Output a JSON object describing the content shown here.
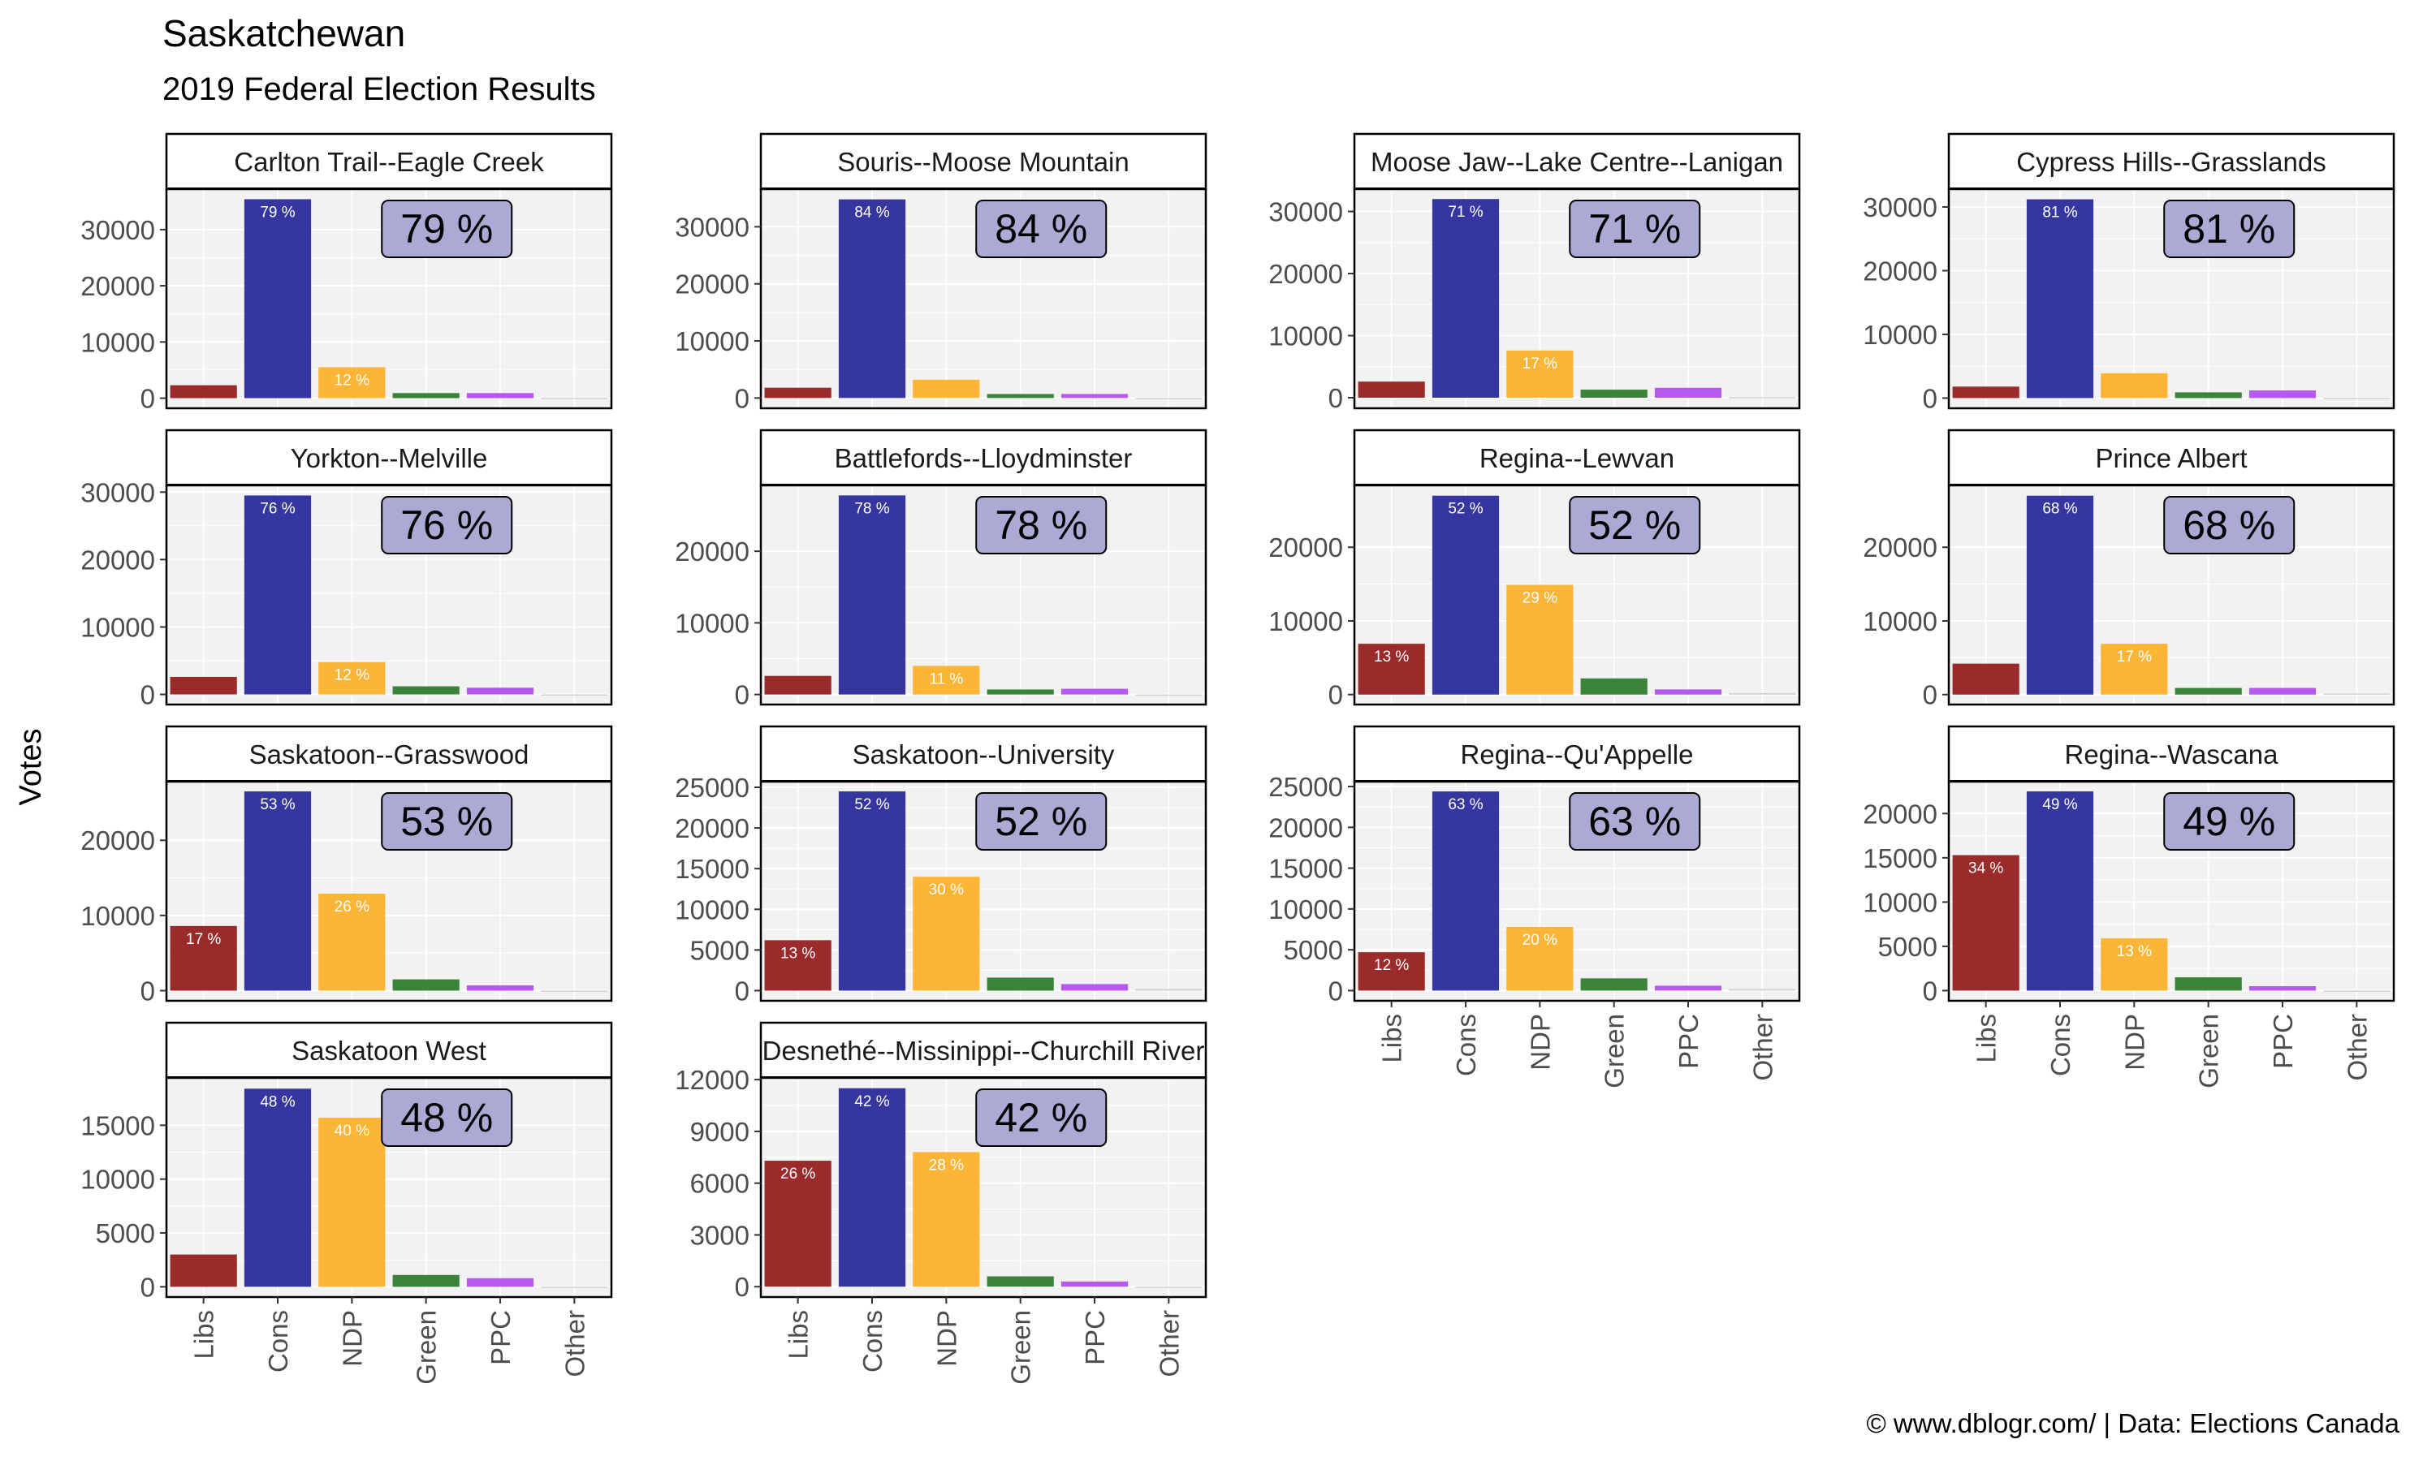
{
  "title": "Saskatchewan",
  "subtitle": "2019 Federal Election Results",
  "caption": "© www.dblogr.com/  |  Data: Elections Canada",
  "colors": {
    "Libs": "#962020",
    "Cons": "#2b2b9b",
    "NDP": "#fcb12c",
    "Green": "#2e7d2e",
    "PPC": "#b34ff0",
    "Other": "#cfcfcf",
    "panel_bg": "#f2f2f2",
    "grid": "#ffffff",
    "badge_bg": "#aaaad5"
  },
  "chart_data": {
    "type": "bar",
    "title": "Saskatchewan",
    "subtitle": "2019 Federal Election Results",
    "ylabel": "Votes",
    "categories": [
      "Libs",
      "Cons",
      "NDP",
      "Green",
      "PPC",
      "Other"
    ],
    "grid": true,
    "panels": [
      {
        "name": "Carlton Trail--Eagle Creek",
        "values": [
          2300,
          35400,
          5500,
          900,
          900,
          50
        ],
        "labels": [
          "",
          "79 %",
          "12 %",
          "",
          "",
          ""
        ],
        "winner": "79 %",
        "ylim": [
          -1800,
          37200
        ],
        "yticks": [
          0,
          10000,
          20000,
          30000
        ]
      },
      {
        "name": "Souris--Moose Mountain",
        "values": [
          1800,
          34800,
          3200,
          700,
          700,
          0
        ],
        "labels": [
          "",
          "84 %",
          "",
          "",
          "",
          ""
        ],
        "winner": "84 %",
        "ylim": [
          -1800,
          36600
        ],
        "yticks": [
          0,
          10000,
          20000,
          30000
        ]
      },
      {
        "name": "Moose Jaw--Lake Centre--Lanigan",
        "values": [
          2600,
          32000,
          7600,
          1300,
          1600,
          100
        ],
        "labels": [
          "",
          "71 %",
          "17 %",
          "",
          "",
          ""
        ],
        "winner": "71 %",
        "ylim": [
          -1700,
          33600
        ],
        "yticks": [
          0,
          10000,
          20000,
          30000
        ]
      },
      {
        "name": "Cypress Hills--Grasslands",
        "values": [
          1800,
          31200,
          3900,
          900,
          1200,
          50
        ],
        "labels": [
          "",
          "81 %",
          "",
          "",
          "",
          ""
        ],
        "winner": "81 %",
        "ylim": [
          -1600,
          32800
        ],
        "yticks": [
          0,
          10000,
          20000,
          30000
        ]
      },
      {
        "name": "Yorkton--Melville",
        "values": [
          2600,
          29500,
          4800,
          1200,
          1000,
          0
        ],
        "labels": [
          "",
          "76 %",
          "12 %",
          "",
          "",
          ""
        ],
        "winner": "76 %",
        "ylim": [
          -1500,
          31000
        ],
        "yticks": [
          0,
          10000,
          20000,
          30000
        ]
      },
      {
        "name": "Battlefords--Lloydminster",
        "values": [
          2600,
          27800,
          4000,
          700,
          800,
          0
        ],
        "labels": [
          "",
          "78 %",
          "11 %",
          "",
          "",
          ""
        ],
        "winner": "78 %",
        "ylim": [
          -1400,
          29200
        ],
        "yticks": [
          0,
          10000,
          20000
        ]
      },
      {
        "name": "Regina--Lewvan",
        "values": [
          6900,
          27000,
          14900,
          2200,
          700,
          200
        ],
        "labels": [
          "13 %",
          "52 %",
          "29 %",
          "",
          "",
          ""
        ],
        "winner": "52 %",
        "ylim": [
          -1350,
          28400
        ],
        "yticks": [
          0,
          10000,
          20000
        ]
      },
      {
        "name": "Prince Albert",
        "values": [
          4200,
          27000,
          6900,
          900,
          900,
          150
        ],
        "labels": [
          "",
          "68 %",
          "17 %",
          "",
          "",
          ""
        ],
        "winner": "68 %",
        "ylim": [
          -1350,
          28400
        ],
        "yticks": [
          0,
          10000,
          20000
        ]
      },
      {
        "name": "Saskatoon--Grasswood",
        "values": [
          8600,
          26500,
          12900,
          1500,
          700,
          0
        ],
        "labels": [
          "17 %",
          "53 %",
          "26 %",
          "",
          "",
          ""
        ],
        "winner": "53 %",
        "ylim": [
          -1350,
          27800
        ],
        "yticks": [
          0,
          10000,
          20000
        ]
      },
      {
        "name": "Saskatoon--University",
        "values": [
          6200,
          24500,
          14000,
          1600,
          800,
          200
        ],
        "labels": [
          "13 %",
          "52 %",
          "30 %",
          "",
          "",
          ""
        ],
        "winner": "52 %",
        "ylim": [
          -1250,
          25700
        ],
        "yticks": [
          0,
          5000,
          10000,
          15000,
          20000,
          25000
        ]
      },
      {
        "name": "Regina--Qu'Appelle",
        "values": [
          4700,
          24400,
          7800,
          1500,
          600,
          200
        ],
        "labels": [
          "12 %",
          "63 %",
          "20 %",
          "",
          "",
          ""
        ],
        "winner": "63 %",
        "ylim": [
          -1250,
          25600
        ],
        "yticks": [
          0,
          5000,
          10000,
          15000,
          20000,
          25000
        ]
      },
      {
        "name": "Regina--Wascana",
        "values": [
          15300,
          22500,
          5900,
          1500,
          500,
          0
        ],
        "labels": [
          "34 %",
          "49 %",
          "13 %",
          "",
          "",
          ""
        ],
        "winner": "49 %",
        "ylim": [
          -1150,
          23600
        ],
        "yticks": [
          0,
          5000,
          10000,
          15000,
          20000
        ]
      },
      {
        "name": "Saskatoon West",
        "values": [
          3000,
          18400,
          15700,
          1100,
          800,
          0
        ],
        "labels": [
          "",
          "48 %",
          "40 %",
          "",
          "",
          ""
        ],
        "winner": "48 %",
        "ylim": [
          -950,
          19400
        ],
        "yticks": [
          0,
          5000,
          10000,
          15000
        ]
      },
      {
        "name": "Desnethé--Missinippi--Churchill River",
        "values": [
          7300,
          11500,
          7800,
          600,
          300,
          0
        ],
        "labels": [
          "26 %",
          "42 %",
          "28 %",
          "",
          "",
          ""
        ],
        "winner": "42 %",
        "ylim": [
          -600,
          12100
        ],
        "yticks": [
          0,
          3000,
          6000,
          9000,
          12000
        ]
      }
    ]
  }
}
